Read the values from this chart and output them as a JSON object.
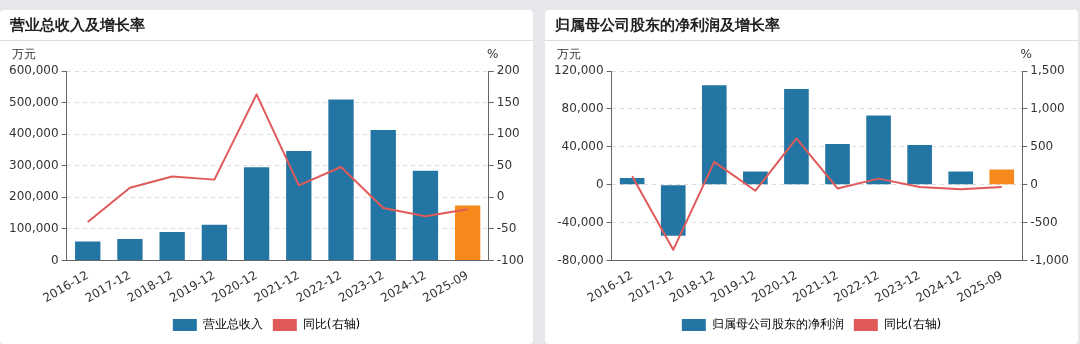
{
  "chart_data": [
    {
      "type": "bar",
      "title": "营业总收入及增长率",
      "ylabel": "万元",
      "y2label": "%",
      "categories": [
        "2016-12",
        "2017-12",
        "2018-12",
        "2019-12",
        "2020-12",
        "2021-12",
        "2022-12",
        "2023-12",
        "2024-12",
        "2025-09"
      ],
      "series": [
        {
          "name": "营业总收入",
          "color": "#2376a3",
          "colors": [
            "#2376a3",
            "#2376a3",
            "#2376a3",
            "#2376a3",
            "#2376a3",
            "#2376a3",
            "#2376a3",
            "#2376a3",
            "#2376a3",
            "#f5891b"
          ],
          "values": [
            60000,
            68000,
            90000,
            113000,
            295000,
            347000,
            510000,
            413000,
            284000,
            174000
          ]
        },
        {
          "name": "同比(右轴)",
          "type": "line",
          "axis": "y2",
          "color": "#e05a5a",
          "values": [
            -39,
            15,
            33,
            28,
            163,
            19,
            48,
            -17,
            -30,
            -19
          ]
        }
      ],
      "ylim": [
        0,
        600000
      ],
      "yticks": [
        0,
        {
          "value": 100000,
          "label": "100,000"
        },
        {
          "value": 200000,
          "label": "200,000"
        },
        {
          "value": 300000,
          "label": "300,000"
        },
        {
          "value": 400000,
          "label": "400,000"
        },
        {
          "value": 500000,
          "label": "500,000"
        },
        {
          "value": 600000,
          "label": "600,000"
        }
      ],
      "y2lim": [
        -100,
        200
      ],
      "y2ticks": [
        -100,
        -50,
        0,
        50,
        100,
        150,
        200
      ],
      "grid": "y",
      "legend": "bottom",
      "marker": "none"
    },
    {
      "type": "bar",
      "title": "归属母公司股东的净利润及增长率",
      "ylabel": "万元",
      "y2label": "%",
      "categories": [
        "2016-12",
        "2017-12",
        "2018-12",
        "2019-12",
        "2020-12",
        "2021-12",
        "2022-12",
        "2023-12",
        "2024-12",
        "2025-09"
      ],
      "series": [
        {
          "name": "归属母公司股东的净利润",
          "color": "#2376a3",
          "colors": [
            "#2376a3",
            "#2376a3",
            "#2376a3",
            "#2376a3",
            "#2376a3",
            "#2376a3",
            "#2376a3",
            "#2376a3",
            "#2376a3",
            "#f5891b"
          ],
          "values": [
            7000,
            -54000,
            105000,
            14000,
            101000,
            43000,
            73000,
            42000,
            14000,
            16000
          ]
        },
        {
          "name": "同比(右轴)",
          "type": "line",
          "axis": "y2",
          "color": "#e05a5a",
          "values": [
            110,
            -860,
            300,
            -80,
            610,
            -50,
            80,
            -30,
            -60,
            -30
          ]
        }
      ],
      "ylim": [
        -80000,
        120000
      ],
      "yticks": [
        {
          "value": -80000,
          "label": "-80,000"
        },
        {
          "value": -40000,
          "label": "-40,000"
        },
        0,
        {
          "value": 40000,
          "label": "40,000"
        },
        {
          "value": 80000,
          "label": "80,000"
        },
        {
          "value": 120000,
          "label": "120,000"
        }
      ],
      "y2lim": [
        -1000,
        1500
      ],
      "y2ticks": [
        {
          "value": -1000,
          "label": "-1,000"
        },
        -500,
        0,
        500,
        {
          "value": 1000,
          "label": "1,000"
        },
        {
          "value": 1500,
          "label": "1,500"
        }
      ],
      "grid": "y",
      "legend": "bottom",
      "marker": "none"
    }
  ]
}
